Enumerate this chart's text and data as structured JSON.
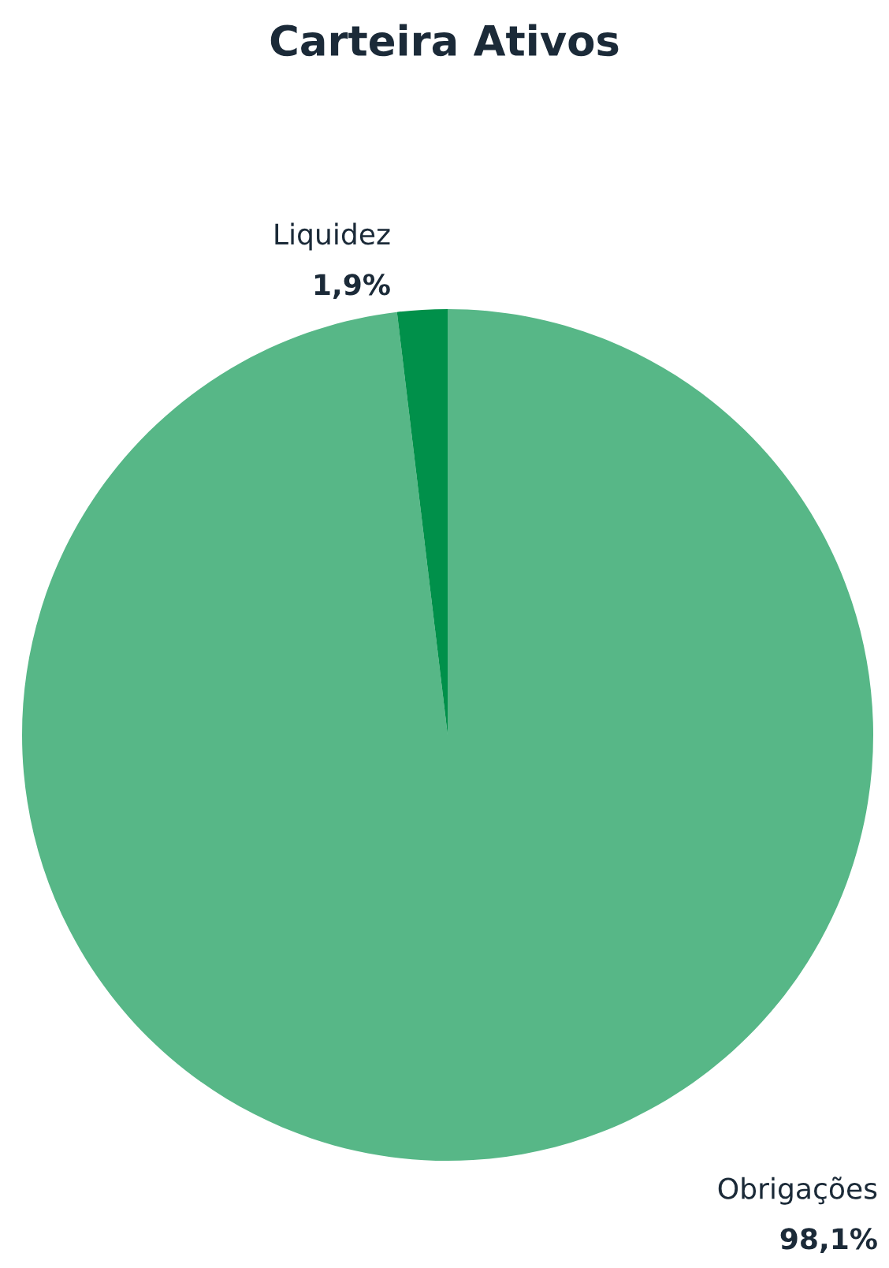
{
  "chart_data": {
    "type": "pie",
    "title": "Carteira Ativos",
    "categories": [
      "Obrigações",
      "Liquidez"
    ],
    "values": [
      98.1,
      1.9
    ],
    "colors": [
      "#57b787",
      "#00904a"
    ],
    "value_labels": [
      "98,1%",
      "1,9%"
    ]
  }
}
